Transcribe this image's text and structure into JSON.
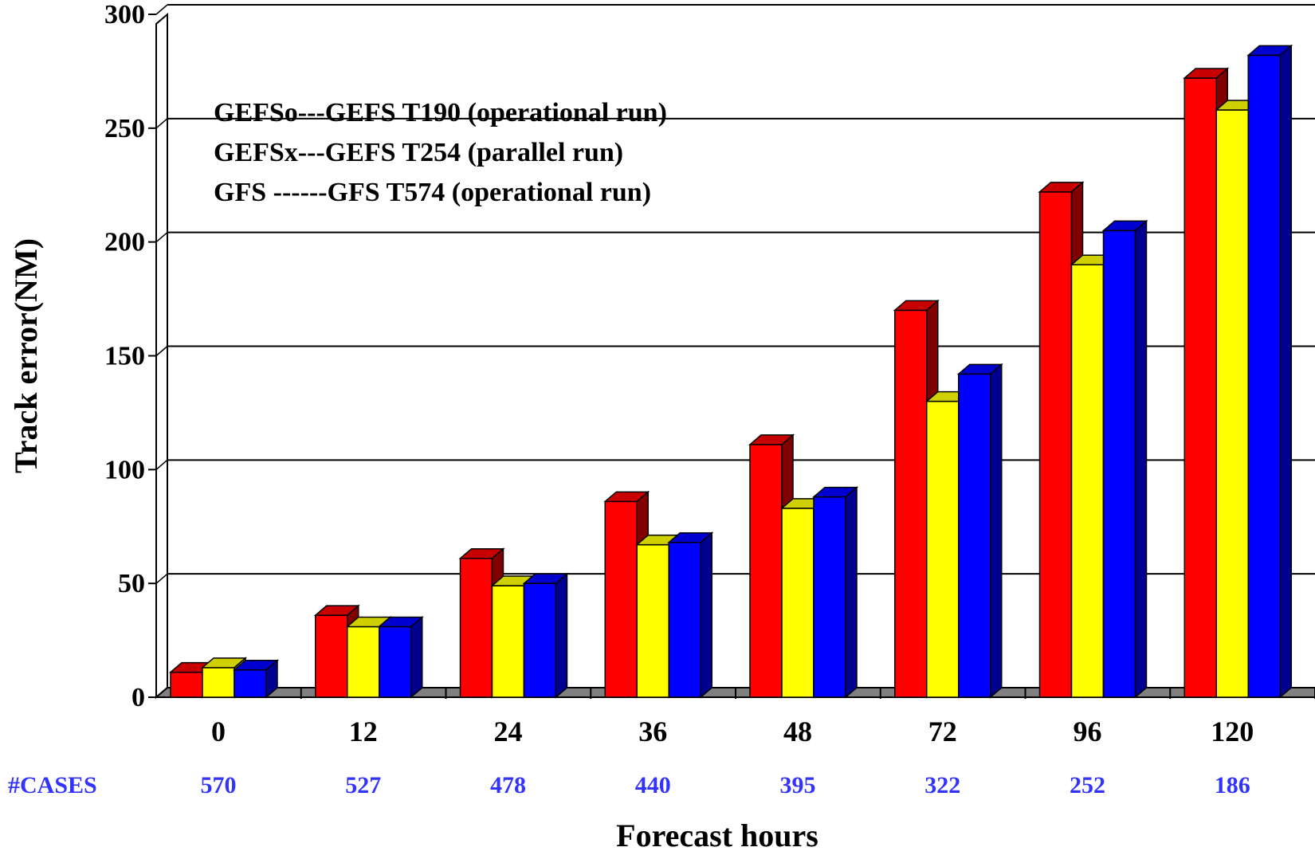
{
  "chart_data": {
    "type": "bar",
    "title": "",
    "xlabel": "Forecast hours",
    "ylabel": "Track error(NM)",
    "ylim": [
      0,
      300
    ],
    "yticks": [
      "0",
      "50",
      "100",
      "150",
      "200",
      "250",
      "300"
    ],
    "grid": true,
    "categories": [
      "0",
      "12",
      "24",
      "36",
      "48",
      "72",
      "96",
      "120"
    ],
    "series": [
      {
        "values": [
          11,
          36,
          61,
          86,
          111,
          170,
          222,
          272
        ],
        "color": "#ff0000",
        "top_color": "#c80000",
        "side_color": "#800000"
      },
      {
        "values": [
          13,
          31,
          49,
          67,
          83,
          130,
          190,
          258
        ],
        "color": "#ffff00",
        "top_color": "#d0d000",
        "side_color": "#8a8a00"
      },
      {
        "values": [
          12,
          31,
          50,
          68,
          88,
          142,
          205,
          282
        ],
        "color": "#0000ff",
        "top_color": "#0000d0",
        "side_color": "#000090"
      }
    ],
    "legend_lines": [
      "GEFSo---GEFS T190 (operational run)",
      "GEFSx---GEFS T254 (parallel run)",
      "GFS ------GFS    T574 (operational run)"
    ],
    "cases": {
      "label": "#CASES",
      "values": [
        "570",
        "527",
        "478",
        "440",
        "395",
        "322",
        "252",
        "186"
      ],
      "color": "#3333ff"
    }
  }
}
